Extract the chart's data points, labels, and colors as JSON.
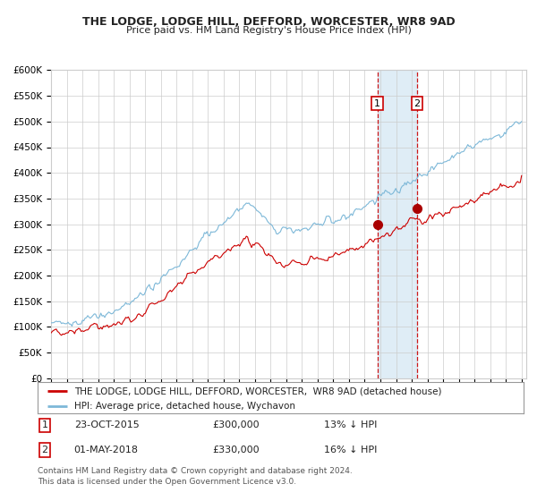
{
  "title1": "THE LODGE, LODGE HILL, DEFFORD, WORCESTER, WR8 9AD",
  "title2": "Price paid vs. HM Land Registry's House Price Index (HPI)",
  "ylabel_ticks": [
    "£0",
    "£50K",
    "£100K",
    "£150K",
    "£200K",
    "£250K",
    "£300K",
    "£350K",
    "£400K",
    "£450K",
    "£500K",
    "£550K",
    "£600K"
  ],
  "ytick_values": [
    0,
    50000,
    100000,
    150000,
    200000,
    250000,
    300000,
    350000,
    400000,
    450000,
    500000,
    550000,
    600000
  ],
  "xstart_year": 1995,
  "xend_year": 2025,
  "hpi_color": "#7db8d8",
  "price_color": "#cc0000",
  "sale1_year": 2015.8,
  "sale1_value": 300000,
  "sale2_year": 2018.33,
  "sale2_value": 330000,
  "shade_color": "#daeaf5",
  "dashed_color": "#cc0000",
  "legend_house_label": "THE LODGE, LODGE HILL, DEFFORD, WORCESTER,  WR8 9AD (detached house)",
  "legend_hpi_label": "HPI: Average price, detached house, Wychavon",
  "background_color": "#ffffff",
  "grid_color": "#cccccc",
  "footnote": "Contains HM Land Registry data © Crown copyright and database right 2024.\nThis data is licensed under the Open Government Licence v3.0."
}
